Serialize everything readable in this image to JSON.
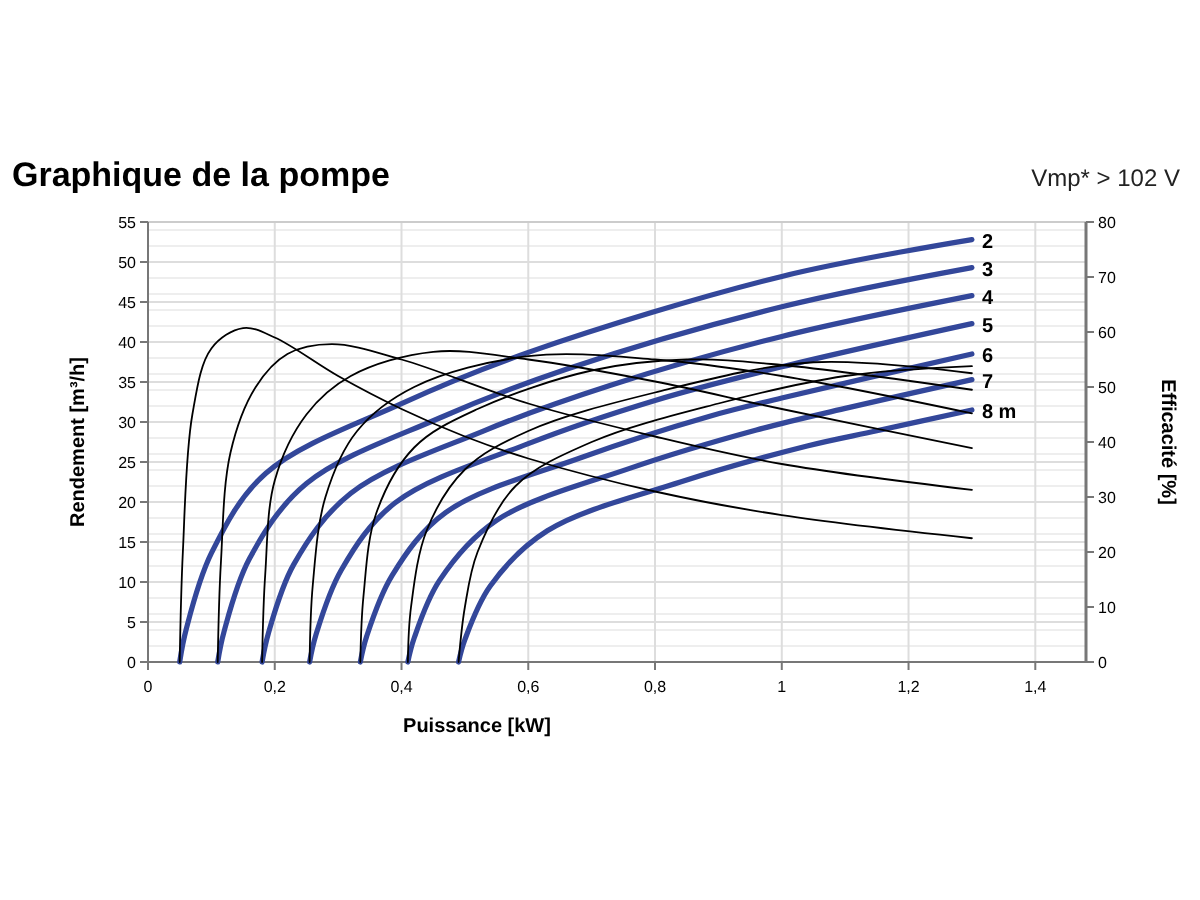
{
  "chart_data": {
    "type": "line",
    "title": "Graphique de la pompe",
    "annotations": [
      "Vmp* > 102 V"
    ],
    "xlabel": "Puissance [kW]",
    "ylabel": "Rendement [m³/h]",
    "y2label": "Efficacité [%]",
    "xlim": [
      0,
      1.48
    ],
    "xticks": [
      0,
      {
        "value": 0.2,
        "label": "0,2"
      },
      {
        "value": 0.4,
        "label": "0,4"
      },
      {
        "value": 0.6,
        "label": "0,6"
      },
      {
        "value": 0.8,
        "label": "0,8"
      },
      1,
      {
        "value": 1.2,
        "label": "1,2"
      },
      {
        "value": 1.4,
        "label": "1,4"
      }
    ],
    "ylim": [
      0,
      55
    ],
    "yticks": [
      0,
      5,
      10,
      15,
      20,
      25,
      30,
      35,
      40,
      45,
      50,
      55
    ],
    "y2lim": [
      0,
      80
    ],
    "y2ticks": [
      0,
      10,
      20,
      30,
      40,
      50,
      60,
      70,
      80
    ],
    "grid": true,
    "marker": "none",
    "line_style": "solid",
    "series": [
      {
        "name": "2",
        "color": "#33479a",
        "x": [
          0.05,
          0.06,
          0.1,
          0.186,
          0.4,
          0.6,
          1.0,
          1.3
        ],
        "values": [
          0,
          4,
          13.6,
          23.6,
          32.3,
          38.7,
          48.2,
          52.8
        ]
      },
      {
        "name": "3",
        "color": "#33479a",
        "x": [
          0.11,
          0.12,
          0.16,
          0.25,
          0.46,
          0.66,
          1.0,
          1.3
        ],
        "values": [
          0,
          3.8,
          12.9,
          22.3,
          30.5,
          36.6,
          44.4,
          49.3
        ]
      },
      {
        "name": "4",
        "color": "#33479a",
        "x": [
          0.18,
          0.19,
          0.23,
          0.32,
          0.53,
          0.73,
          1.0,
          1.3
        ],
        "values": [
          0,
          3.6,
          12.2,
          21.1,
          28.9,
          34.6,
          40.7,
          45.8
        ]
      },
      {
        "name": "5",
        "color": "#33479a",
        "x": [
          0.255,
          0.265,
          0.305,
          0.39,
          0.6,
          0.8,
          1.0,
          1.3
        ],
        "values": [
          0,
          3.4,
          11.5,
          19.9,
          27.3,
          32.7,
          36.9,
          42.3
        ]
      },
      {
        "name": "6",
        "color": "#33479a",
        "x": [
          0.335,
          0.345,
          0.385,
          0.47,
          0.685,
          0.885,
          1.0,
          1.3
        ],
        "values": [
          0,
          3.2,
          10.8,
          18.7,
          25.6,
          30.7,
          33,
          38.5
        ]
      },
      {
        "name": "7",
        "color": "#33479a",
        "x": [
          0.41,
          0.42,
          0.46,
          0.55,
          0.76,
          0.96,
          1.1,
          1.3
        ],
        "values": [
          0,
          3,
          10.2,
          17.7,
          24.2,
          29,
          31.7,
          35.3
        ]
      },
      {
        "name": "8 m",
        "color": "#33479a",
        "x": [
          0.49,
          0.5,
          0.54,
          0.63,
          0.84,
          1.04,
          1.15,
          1.3
        ],
        "values": [
          0,
          2.8,
          9.5,
          16.4,
          22.5,
          27,
          28.9,
          31.5
        ]
      },
      {
        "color": "#000000",
        "axis": "y2",
        "x": [
          0.05,
          0.055,
          0.07,
          0.1,
          0.15,
          0.2,
          0.3,
          0.4,
          0.5,
          0.6,
          0.8,
          1.0,
          1.3
        ],
        "values": [
          0,
          20,
          45,
          57,
          60.7,
          59,
          52,
          46,
          41,
          37,
          31,
          26.7,
          22.5
        ]
      },
      {
        "color": "#000000",
        "axis": "y2",
        "x": [
          0.11,
          0.115,
          0.13,
          0.17,
          0.22,
          0.29,
          0.4,
          0.6,
          0.8,
          1.0,
          1.3
        ],
        "values": [
          0,
          18,
          38,
          50,
          56,
          57.8,
          55,
          47,
          41,
          36,
          31.3
        ]
      },
      {
        "color": "#000000",
        "axis": "y2",
        "x": [
          0.18,
          0.185,
          0.2,
          0.25,
          0.32,
          0.45,
          0.6,
          0.8,
          1.0,
          1.3
        ],
        "values": [
          0,
          16,
          33,
          45,
          52,
          56.4,
          55,
          51,
          46,
          38.9
        ]
      },
      {
        "color": "#000000",
        "axis": "y2",
        "x": [
          0.255,
          0.26,
          0.28,
          0.33,
          0.42,
          0.6,
          0.8,
          1.0,
          1.3
        ],
        "values": [
          0,
          14,
          30,
          42,
          50,
          55.6,
          55,
          52,
          45.2
        ]
      },
      {
        "color": "#000000",
        "axis": "y2",
        "x": [
          0.335,
          0.34,
          0.36,
          0.42,
          0.52,
          0.7,
          0.85,
          1.0,
          1.3
        ],
        "values": [
          0,
          12,
          27,
          39,
          46,
          53,
          55,
          54,
          49.5
        ]
      },
      {
        "color": "#000000",
        "axis": "y2",
        "x": [
          0.41,
          0.415,
          0.44,
          0.5,
          0.6,
          0.8,
          1.05,
          1.3
        ],
        "values": [
          0,
          10,
          24,
          35,
          42,
          49,
          54.5,
          52.5
        ]
      },
      {
        "color": "#000000",
        "axis": "y2",
        "x": [
          0.49,
          0.5,
          0.52,
          0.58,
          0.7,
          0.9,
          1.1,
          1.3
        ],
        "values": [
          0,
          10,
          20,
          32,
          40,
          47,
          52,
          53.8
        ]
      }
    ]
  }
}
